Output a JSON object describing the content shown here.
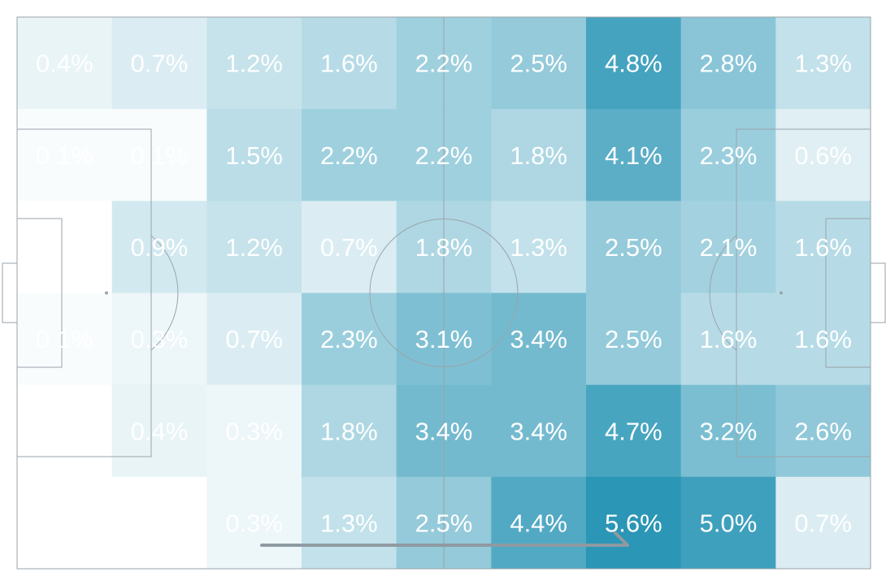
{
  "chart_data": {
    "type": "heatmap",
    "title": "",
    "xlabel": "",
    "ylabel": "",
    "grid": false,
    "color_low": "#ffffff",
    "color_high": "#2b96b6",
    "pitch_line_color": "#9aa3ab",
    "arrow_color": "#8f9aa1",
    "value_max": 5.6,
    "rows": 6,
    "cols": 9,
    "values": [
      [
        0.4,
        0.7,
        1.2,
        1.6,
        2.2,
        2.5,
        4.8,
        2.8,
        1.3
      ],
      [
        0.1,
        0.1,
        1.5,
        2.2,
        2.2,
        1.8,
        4.1,
        2.3,
        0.6
      ],
      [
        0.0,
        0.9,
        1.2,
        0.7,
        1.8,
        1.3,
        2.5,
        2.1,
        1.6
      ],
      [
        0.1,
        0.3,
        0.7,
        2.3,
        3.1,
        3.4,
        2.5,
        1.6,
        1.6
      ],
      [
        0.0,
        0.4,
        0.3,
        1.8,
        3.4,
        3.4,
        4.7,
        3.2,
        2.6
      ],
      [
        0.0,
        0.0,
        0.3,
        1.3,
        2.5,
        4.4,
        5.6,
        5.0,
        0.7
      ]
    ],
    "labels": [
      [
        "0.4%",
        "0.7%",
        "1.2%",
        "1.6%",
        "2.2%",
        "2.5%",
        "4.8%",
        "2.8%",
        "1.3%"
      ],
      [
        "0.1%",
        "0.1%",
        "1.5%",
        "2.2%",
        "2.2%",
        "1.8%",
        "4.1%",
        "2.3%",
        "0.6%"
      ],
      [
        "",
        "0.9%",
        "1.2%",
        "0.7%",
        "1.8%",
        "1.3%",
        "2.5%",
        "2.1%",
        "1.6%"
      ],
      [
        "0.1%",
        "0.3%",
        "0.7%",
        "2.3%",
        "3.1%",
        "3.4%",
        "2.5%",
        "1.6%",
        "1.6%"
      ],
      [
        "",
        "0.4%",
        "0.3%",
        "1.8%",
        "3.4%",
        "3.4%",
        "4.7%",
        "3.2%",
        "2.6%"
      ],
      [
        "",
        "",
        "0.3%",
        "1.3%",
        "2.5%",
        "4.4%",
        "5.6%",
        "5.0%",
        "0.7%"
      ]
    ]
  }
}
